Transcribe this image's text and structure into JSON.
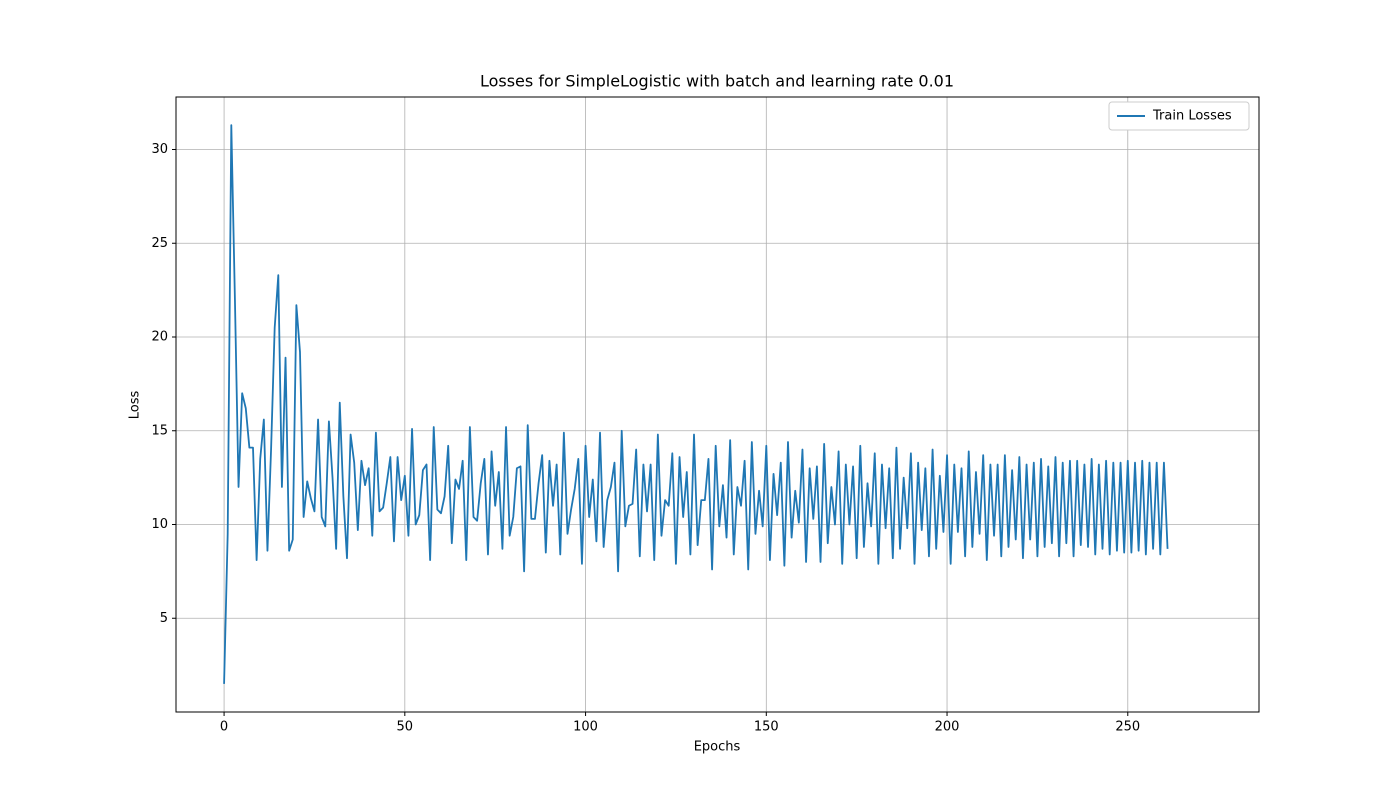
{
  "chart_data": {
    "type": "line",
    "title": "Losses for SimpleLogistic with batch and learning rate 0.01",
    "x_label": "Epochs",
    "y_label": "Loss",
    "x": [
      0,
      1,
      2,
      3,
      4,
      5,
      6,
      7,
      8,
      9,
      10,
      11,
      12,
      13,
      14,
      15,
      16,
      17,
      18,
      19,
      20,
      21,
      22,
      23,
      24,
      25,
      26,
      27,
      28,
      29,
      30,
      31,
      32,
      33,
      34,
      35,
      36,
      37,
      38,
      39,
      40,
      41,
      42,
      43,
      44,
      45,
      46,
      47,
      48,
      49,
      50,
      51,
      52,
      53,
      54,
      55,
      56,
      57,
      58,
      59,
      60,
      61,
      62,
      63,
      64,
      65,
      66,
      67,
      68,
      69,
      70,
      71,
      72,
      73,
      74,
      75,
      76,
      77,
      78,
      79,
      80,
      81,
      82,
      83,
      84,
      85,
      86,
      87,
      88,
      89,
      90,
      91,
      92,
      93,
      94,
      95,
      96,
      97,
      98,
      99,
      100,
      101,
      102,
      103,
      104,
      105,
      106,
      107,
      108,
      109,
      110,
      111,
      112,
      113,
      114,
      115,
      116,
      117,
      118,
      119,
      120,
      121,
      122,
      123,
      124,
      125,
      126,
      127,
      128,
      129,
      130,
      131,
      132,
      133,
      134,
      135,
      136,
      137,
      138,
      139,
      140,
      141,
      142,
      143,
      144,
      145,
      146,
      147,
      148,
      149,
      150,
      151,
      152,
      153,
      154,
      155,
      156,
      157,
      158,
      159,
      160,
      161,
      162,
      163,
      164,
      165,
      166,
      167,
      168,
      169,
      170,
      171,
      172,
      173,
      174,
      175,
      176,
      177,
      178,
      179,
      180,
      181,
      182,
      183,
      184,
      185,
      186,
      187,
      188,
      189,
      190,
      191,
      192,
      193,
      194,
      195,
      196,
      197,
      198,
      199,
      200,
      201,
      202,
      203,
      204,
      205,
      206,
      207,
      208,
      209,
      210,
      211,
      212,
      213,
      214,
      215,
      216,
      217,
      218,
      219,
      220,
      221,
      222,
      223,
      224,
      225,
      226,
      227,
      228,
      229,
      230,
      231,
      232,
      233,
      234,
      235,
      236,
      237,
      238,
      239,
      240,
      241,
      242,
      243,
      244,
      245,
      246,
      247,
      248,
      249,
      250,
      251,
      252,
      253,
      254,
      255,
      256,
      257,
      258,
      259,
      260,
      261
    ],
    "series": [
      {
        "name": "Train Losses",
        "color": "#1f77b4",
        "values": [
          1.5,
          9.5,
          31.3,
          22,
          12,
          17,
          16.2,
          14.1,
          14.1,
          8.1,
          13.5,
          15.6,
          8.6,
          14,
          20.5,
          23.3,
          12,
          18.9,
          8.6,
          9.2,
          21.7,
          19.2,
          10.4,
          12.3,
          11.4,
          10.7,
          15.6,
          10.4,
          9.9,
          15.5,
          12.5,
          8.7,
          16.5,
          11.5,
          8.2,
          14.8,
          13.3,
          9.7,
          13.4,
          12.1,
          13,
          9.4,
          14.9,
          10.7,
          10.9,
          12.2,
          13.6,
          9.1,
          13.6,
          11.3,
          12.6,
          9.4,
          15.1,
          10,
          10.5,
          12.9,
          13.2,
          8.1,
          15.2,
          10.8,
          10.6,
          11.5,
          14.2,
          9,
          12.4,
          11.9,
          13.4,
          8.1,
          15.2,
          10.4,
          10.2,
          12.2,
          13.5,
          8.4,
          13.9,
          11,
          12.8,
          8.7,
          15.2,
          9.4,
          10.4,
          13,
          13.1,
          7.5,
          15.3,
          10.3,
          10.3,
          12.2,
          13.7,
          8.5,
          13.4,
          11,
          13.2,
          8.4,
          14.9,
          9.5,
          10.8,
          11.9,
          13.5,
          7.9,
          14.2,
          10.4,
          12.4,
          9.1,
          14.9,
          8.8,
          11.3,
          12,
          13.3,
          7.5,
          15,
          9.9,
          11,
          11.1,
          14,
          8.3,
          13.2,
          10.7,
          13.2,
          8.1,
          14.8,
          9.4,
          11.3,
          11,
          13.8,
          7.9,
          13.6,
          10.4,
          12.8,
          8.4,
          14.8,
          8.9,
          11.3,
          11.3,
          13.5,
          7.6,
          14.2,
          9.9,
          12.1,
          9.3,
          14.5,
          8.4,
          12,
          11,
          13.4,
          7.6,
          14.4,
          9.5,
          11.8,
          9.9,
          14.2,
          8.1,
          12.7,
          10.5,
          13.3,
          7.8,
          14.4,
          9.3,
          11.8,
          10.1,
          14,
          8,
          13,
          10.3,
          13.1,
          8,
          14.3,
          9,
          12,
          10,
          13.9,
          7.9,
          13.2,
          10,
          13.1,
          8.2,
          14.2,
          8.8,
          12.2,
          9.9,
          13.8,
          7.9,
          13.2,
          9.8,
          13,
          8.2,
          14.1,
          8.7,
          12.5,
          9.8,
          13.8,
          7.9,
          13.3,
          9.7,
          13,
          8.3,
          14,
          8.7,
          12.6,
          9.6,
          13.7,
          7.9,
          13.2,
          9.6,
          13,
          8.3,
          13.9,
          8.8,
          12.8,
          9.5,
          13.7,
          8.1,
          13.2,
          9.4,
          13.2,
          8.3,
          13.7,
          8.8,
          12.9,
          9.2,
          13.6,
          8.2,
          13.2,
          9.2,
          13.3,
          8.3,
          13.5,
          8.8,
          13.1,
          9,
          13.6,
          8.3,
          13.3,
          9,
          13.4,
          8.3,
          13.4,
          8.9,
          13.2,
          8.8,
          13.5,
          8.4,
          13.2,
          8.7,
          13.4,
          8.4,
          13.3,
          8.6,
          13.3,
          8.5,
          13.4,
          8.5,
          13.3,
          8.6,
          13.4,
          8.4,
          13.3,
          8.7,
          13.3,
          8.4,
          13.3,
          8.7
        ]
      }
    ],
    "xlim": [
      -13.3,
      286.3
    ],
    "ylim": [
      0,
      32.8
    ],
    "xticks": [
      0,
      50,
      100,
      150,
      200,
      250
    ],
    "yticks": [
      5,
      10,
      15,
      20,
      25,
      30
    ],
    "grid": true,
    "legend": "upper right"
  }
}
